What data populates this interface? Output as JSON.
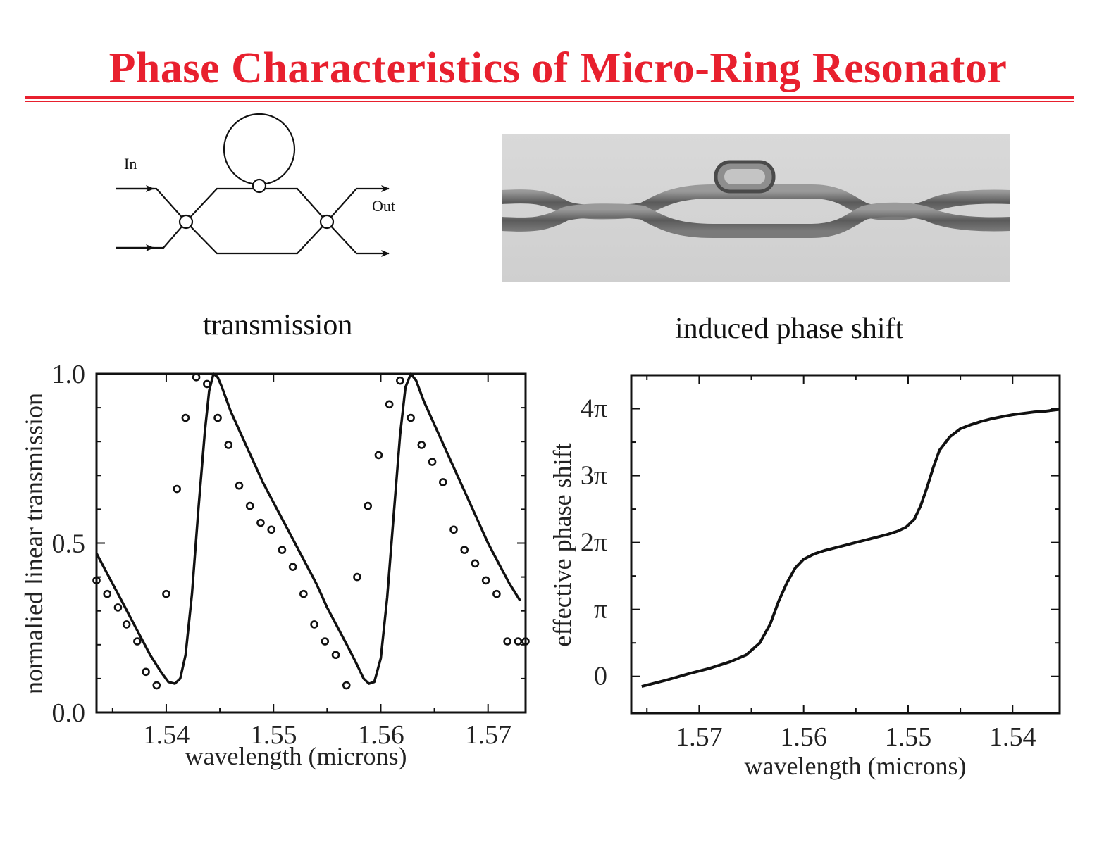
{
  "slide": {
    "title": "Phase Characteristics of Micro-Ring Resonator",
    "title_color": "#e8202e"
  },
  "schematic": {
    "in_label": "In",
    "out_label": "Out"
  },
  "panels": {
    "left_title": "transmission",
    "right_title": "induced phase shift"
  },
  "chart_data": [
    {
      "type": "line",
      "title": "transmission",
      "xlabel": "wavelength (microns)",
      "ylabel": "normalied linear transmission",
      "xlim": [
        1.5335,
        1.5735
      ],
      "ylim": [
        0.0,
        1.0
      ],
      "xticks": [
        "1.54",
        "1.55",
        "1.56",
        "1.57"
      ],
      "xtick_values": [
        1.54,
        1.55,
        1.56,
        1.57
      ],
      "yticks": [
        "0.0",
        "0.5",
        "1.0"
      ],
      "ytick_values": [
        0.0,
        0.5,
        1.0
      ],
      "series": [
        {
          "style": "line",
          "x": [
            1.5335,
            1.5345,
            1.5355,
            1.5365,
            1.5375,
            1.5385,
            1.5395,
            1.5402,
            1.5408,
            1.5413,
            1.5418,
            1.5424,
            1.543,
            1.5436,
            1.544,
            1.5444,
            1.5448,
            1.5452,
            1.546,
            1.547,
            1.548,
            1.549,
            1.55,
            1.551,
            1.552,
            1.553,
            1.554,
            1.555,
            1.556,
            1.557,
            1.5578,
            1.5584,
            1.5589,
            1.5594,
            1.56,
            1.5606,
            1.5612,
            1.5618,
            1.5623,
            1.5628,
            1.5633,
            1.564,
            1.565,
            1.566,
            1.567,
            1.568,
            1.569,
            1.57,
            1.571,
            1.572,
            1.573
          ],
          "y": [
            0.47,
            0.41,
            0.35,
            0.29,
            0.23,
            0.17,
            0.12,
            0.09,
            0.085,
            0.1,
            0.17,
            0.35,
            0.6,
            0.83,
            0.95,
            1.0,
            0.99,
            0.96,
            0.89,
            0.82,
            0.75,
            0.68,
            0.62,
            0.56,
            0.5,
            0.44,
            0.38,
            0.31,
            0.25,
            0.19,
            0.14,
            0.1,
            0.085,
            0.09,
            0.16,
            0.34,
            0.58,
            0.82,
            0.96,
            1.0,
            0.98,
            0.92,
            0.85,
            0.78,
            0.71,
            0.64,
            0.57,
            0.5,
            0.44,
            0.38,
            0.33
          ]
        },
        {
          "style": "markers",
          "x": [
            1.5335,
            1.5345,
            1.5355,
            1.5363,
            1.5373,
            1.5381,
            1.5391,
            1.54,
            1.541,
            1.5418,
            1.5428,
            1.5438,
            1.5448,
            1.5458,
            1.5468,
            1.5478,
            1.5488,
            1.5498,
            1.5508,
            1.5518,
            1.5528,
            1.5538,
            1.5548,
            1.5558,
            1.5568,
            1.5578,
            1.5588,
            1.5598,
            1.5608,
            1.5618,
            1.5628,
            1.5638,
            1.5648,
            1.5658,
            1.5668,
            1.5678,
            1.5688,
            1.5698,
            1.5708,
            1.5718,
            1.5728,
            1.5738
          ],
          "y": [
            0.39,
            0.35,
            0.31,
            0.26,
            0.21,
            0.12,
            0.08,
            0.35,
            0.66,
            0.87,
            0.99,
            0.97,
            0.87,
            0.79,
            0.67,
            0.61,
            0.56,
            0.54,
            0.48,
            0.43,
            0.35,
            0.26,
            0.21,
            0.17,
            0.08,
            0.4,
            0.61,
            0.76,
            0.91,
            0.98,
            0.87,
            0.79,
            0.74,
            0.68,
            0.54,
            0.48,
            0.44,
            0.39,
            0.35,
            0.21,
            0.21,
            0.21
          ]
        }
      ]
    },
    {
      "type": "line",
      "title": "induced phase shift",
      "xlabel": "wavelength (microns)",
      "ylabel": "effective phase shift",
      "x_reversed": true,
      "xlim": [
        1.5765,
        1.5355
      ],
      "ylim": [
        -0.55,
        4.5
      ],
      "ylim_unit": "pi",
      "xticks": [
        "1.57",
        "1.56",
        "1.55",
        "1.54"
      ],
      "xtick_values": [
        1.57,
        1.56,
        1.55,
        1.54
      ],
      "yticks": [
        "0",
        "π",
        "2π",
        "3π",
        "4π"
      ],
      "ytick_values": [
        0,
        1,
        2,
        3,
        4
      ],
      "series": [
        {
          "style": "line",
          "x": [
            1.5755,
            1.573,
            1.571,
            1.569,
            1.567,
            1.5655,
            1.5642,
            1.5632,
            1.5624,
            1.5616,
            1.5608,
            1.56,
            1.559,
            1.558,
            1.557,
            1.556,
            1.555,
            1.554,
            1.553,
            1.552,
            1.551,
            1.5502,
            1.5494,
            1.5488,
            1.5482,
            1.5476,
            1.547,
            1.546,
            1.545,
            1.544,
            1.543,
            1.542,
            1.541,
            1.54,
            1.539,
            1.538,
            1.537,
            1.536,
            1.5355
          ],
          "y": [
            -0.15,
            -0.05,
            0.04,
            0.12,
            0.22,
            0.32,
            0.5,
            0.78,
            1.12,
            1.4,
            1.62,
            1.75,
            1.83,
            1.88,
            1.92,
            1.96,
            2.0,
            2.04,
            2.08,
            2.12,
            2.17,
            2.23,
            2.35,
            2.55,
            2.82,
            3.12,
            3.38,
            3.58,
            3.7,
            3.76,
            3.81,
            3.85,
            3.88,
            3.91,
            3.93,
            3.95,
            3.96,
            3.98,
            3.99
          ]
        }
      ]
    }
  ]
}
